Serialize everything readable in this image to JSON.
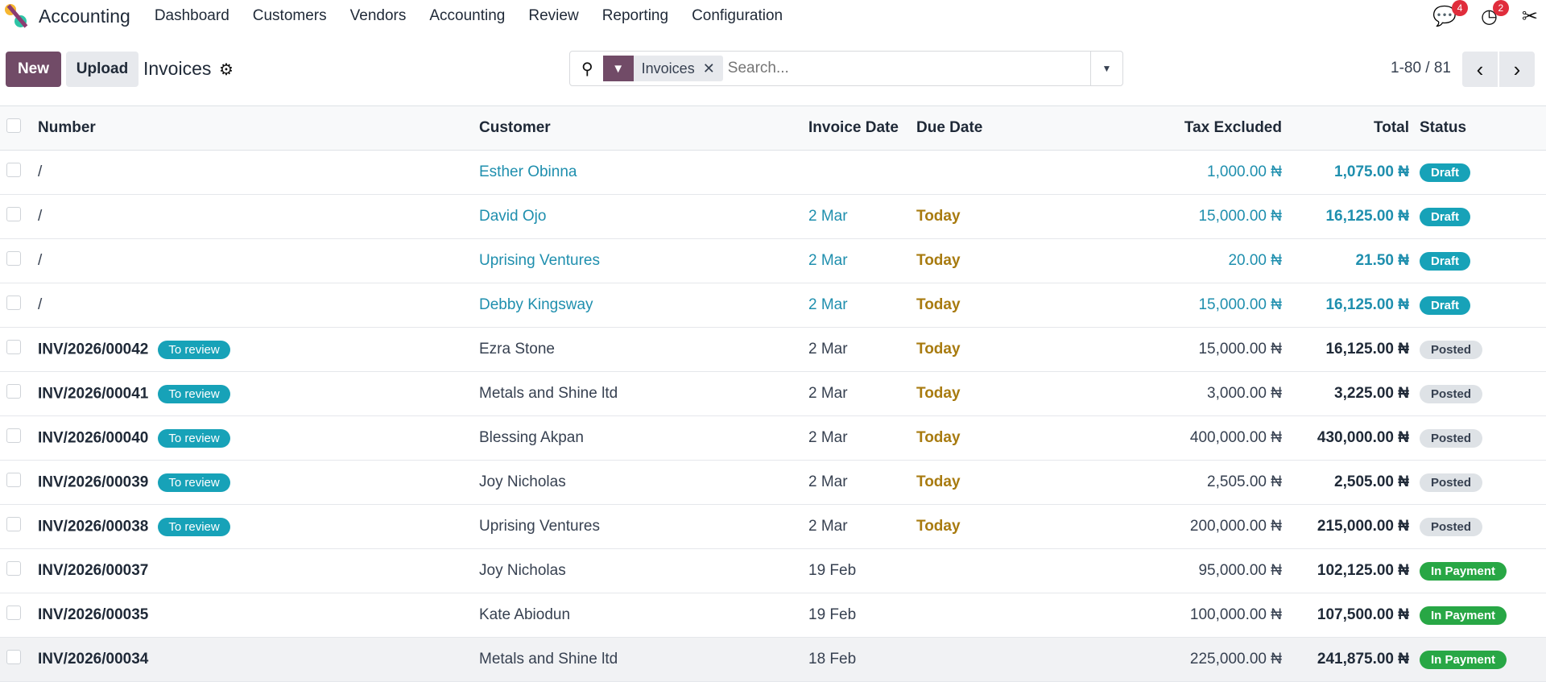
{
  "nav": {
    "app": "Accounting",
    "menus": [
      "Dashboard",
      "Customers",
      "Vendors",
      "Accounting",
      "Review",
      "Reporting",
      "Configuration"
    ],
    "messages_count": "4",
    "activities_count": "2"
  },
  "control": {
    "new": "New",
    "upload": "Upload",
    "title": "Invoices",
    "filter_facet": "Invoices",
    "search_placeholder": "Search...",
    "pager": "1-80 / 81"
  },
  "columns": {
    "number": "Number",
    "customer": "Customer",
    "invoice_date": "Invoice Date",
    "due_date": "Due Date",
    "tax_excluded": "Tax Excluded",
    "total": "Total",
    "status": "Status"
  },
  "rows": [
    {
      "number": "/",
      "tag": "",
      "customer": "Esther Obinna",
      "invoice_date": "",
      "due_date": "",
      "tax_excluded": "1,000.00 ₦",
      "total": "1,075.00 ₦",
      "status": "Draft",
      "kind": "draft"
    },
    {
      "number": "/",
      "tag": "",
      "customer": "David Ojo",
      "invoice_date": "2 Mar",
      "due_date": "Today",
      "tax_excluded": "15,000.00 ₦",
      "total": "16,125.00 ₦",
      "status": "Draft",
      "kind": "draft"
    },
    {
      "number": "/",
      "tag": "",
      "customer": "Uprising Ventures",
      "invoice_date": "2 Mar",
      "due_date": "Today",
      "tax_excluded": "20.00 ₦",
      "total": "21.50 ₦",
      "status": "Draft",
      "kind": "draft"
    },
    {
      "number": "/",
      "tag": "",
      "customer": "Debby Kingsway",
      "invoice_date": "2 Mar",
      "due_date": "Today",
      "tax_excluded": "15,000.00 ₦",
      "total": "16,125.00 ₦",
      "status": "Draft",
      "kind": "draft"
    },
    {
      "number": "INV/2026/00042",
      "tag": "To review",
      "customer": "Ezra Stone",
      "invoice_date": "2 Mar",
      "due_date": "Today",
      "tax_excluded": "15,000.00 ₦",
      "total": "16,125.00 ₦",
      "status": "Posted",
      "kind": "posted"
    },
    {
      "number": "INV/2026/00041",
      "tag": "To review",
      "customer": "Metals and Shine ltd",
      "invoice_date": "2 Mar",
      "due_date": "Today",
      "tax_excluded": "3,000.00 ₦",
      "total": "3,225.00 ₦",
      "status": "Posted",
      "kind": "posted"
    },
    {
      "number": "INV/2026/00040",
      "tag": "To review",
      "customer": "Blessing Akpan",
      "invoice_date": "2 Mar",
      "due_date": "Today",
      "tax_excluded": "400,000.00 ₦",
      "total": "430,000.00 ₦",
      "status": "Posted",
      "kind": "posted"
    },
    {
      "number": "INV/2026/00039",
      "tag": "To review",
      "customer": "Joy Nicholas",
      "invoice_date": "2 Mar",
      "due_date": "Today",
      "tax_excluded": "2,505.00 ₦",
      "total": "2,505.00 ₦",
      "status": "Posted",
      "kind": "posted"
    },
    {
      "number": "INV/2026/00038",
      "tag": "To review",
      "customer": "Uprising Ventures",
      "invoice_date": "2 Mar",
      "due_date": "Today",
      "tax_excluded": "200,000.00 ₦",
      "total": "215,000.00 ₦",
      "status": "Posted",
      "kind": "posted"
    },
    {
      "number": "INV/2026/00037",
      "tag": "",
      "customer": "Joy Nicholas",
      "invoice_date": "19 Feb",
      "due_date": "",
      "tax_excluded": "95,000.00 ₦",
      "total": "102,125.00 ₦",
      "status": "In Payment",
      "kind": "pay"
    },
    {
      "number": "INV/2026/00035",
      "tag": "",
      "customer": "Kate Abiodun",
      "invoice_date": "19 Feb",
      "due_date": "",
      "tax_excluded": "100,000.00 ₦",
      "total": "107,500.00 ₦",
      "status": "In Payment",
      "kind": "pay"
    },
    {
      "number": "INV/2026/00034",
      "tag": "",
      "customer": "Metals and Shine ltd",
      "invoice_date": "18 Feb",
      "due_date": "",
      "tax_excluded": "225,000.00 ₦",
      "total": "241,875.00 ₦",
      "status": "In Payment",
      "kind": "pay"
    }
  ]
}
